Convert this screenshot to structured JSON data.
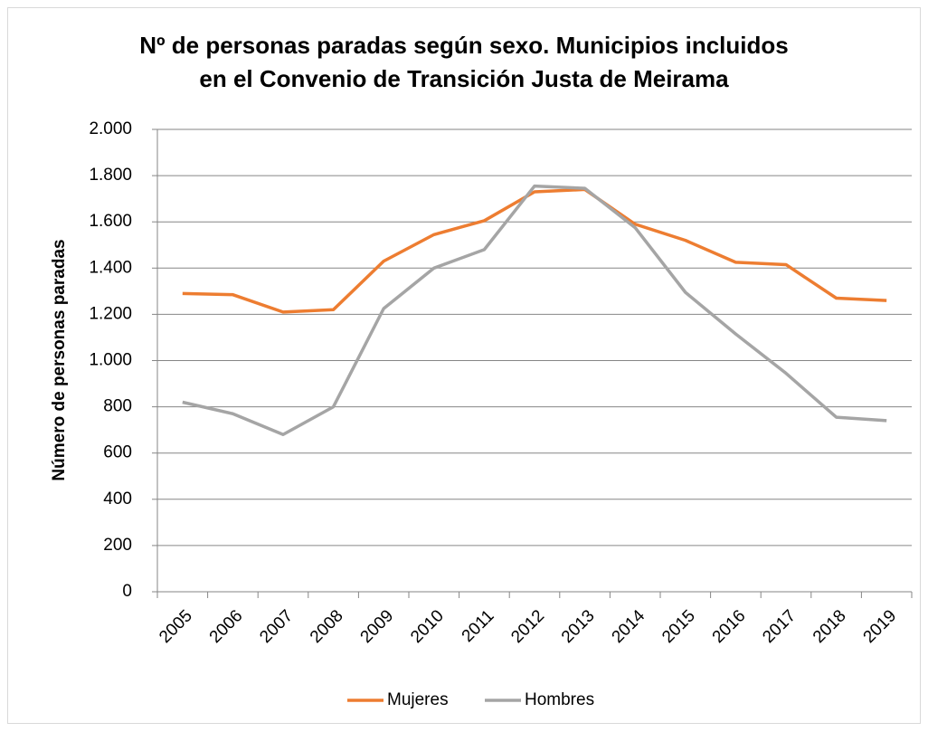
{
  "chart_data": {
    "type": "line",
    "title": [
      "Nº de personas paradas según sexo. Municipios incluidos",
      "en el Convenio de Transición Justa de Meirama"
    ],
    "y_label": "Número de personas paradas",
    "categories": [
      "2005",
      "2006",
      "2007",
      "2008",
      "2009",
      "2010",
      "2011",
      "2012",
      "2013",
      "2014",
      "2015",
      "2016",
      "2017",
      "2018",
      "2019"
    ],
    "series": [
      {
        "name": "Mujeres",
        "color": "#ed7d31",
        "values": [
          1290,
          1285,
          1210,
          1220,
          1430,
          1545,
          1605,
          1730,
          1740,
          1590,
          1520,
          1425,
          1415,
          1270,
          1260
        ]
      },
      {
        "name": "Hombres",
        "color": "#a5a5a5",
        "values": [
          820,
          770,
          680,
          800,
          1225,
          1400,
          1480,
          1755,
          1745,
          1575,
          1295,
          1115,
          945,
          755,
          740
        ]
      }
    ],
    "ylim": [
      0,
      2000
    ],
    "yticks": [
      0,
      200,
      400,
      600,
      800,
      {
        "value": 1000,
        "label": "1.000"
      },
      {
        "value": 1200,
        "label": "1.200"
      },
      {
        "value": 1400,
        "label": "1.400"
      },
      {
        "value": 1600,
        "label": "1.600"
      },
      {
        "value": 1800,
        "label": "1.800"
      },
      {
        "value": 2000,
        "label": "2.000"
      }
    ],
    "grid": true,
    "legend": "bottom"
  }
}
